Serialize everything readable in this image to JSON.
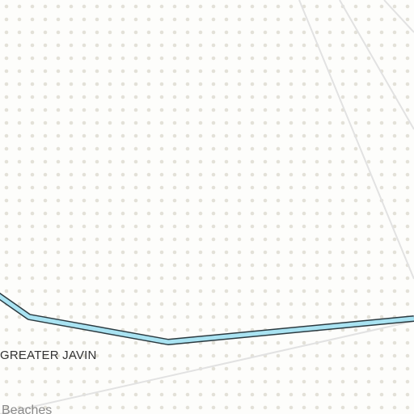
{
  "map": {
    "background_color": "#fdfdfb",
    "dot_color": "#e3e1d8",
    "road_color": "#e2e2e2",
    "river_fill": "#a9e3f2",
    "river_outline": "#2b3a40",
    "labels": {
      "district": "GREATER JAVIN",
      "place": "Beaches"
    },
    "label_colors": {
      "district": "#333333",
      "place": "#8a8a8a"
    }
  }
}
